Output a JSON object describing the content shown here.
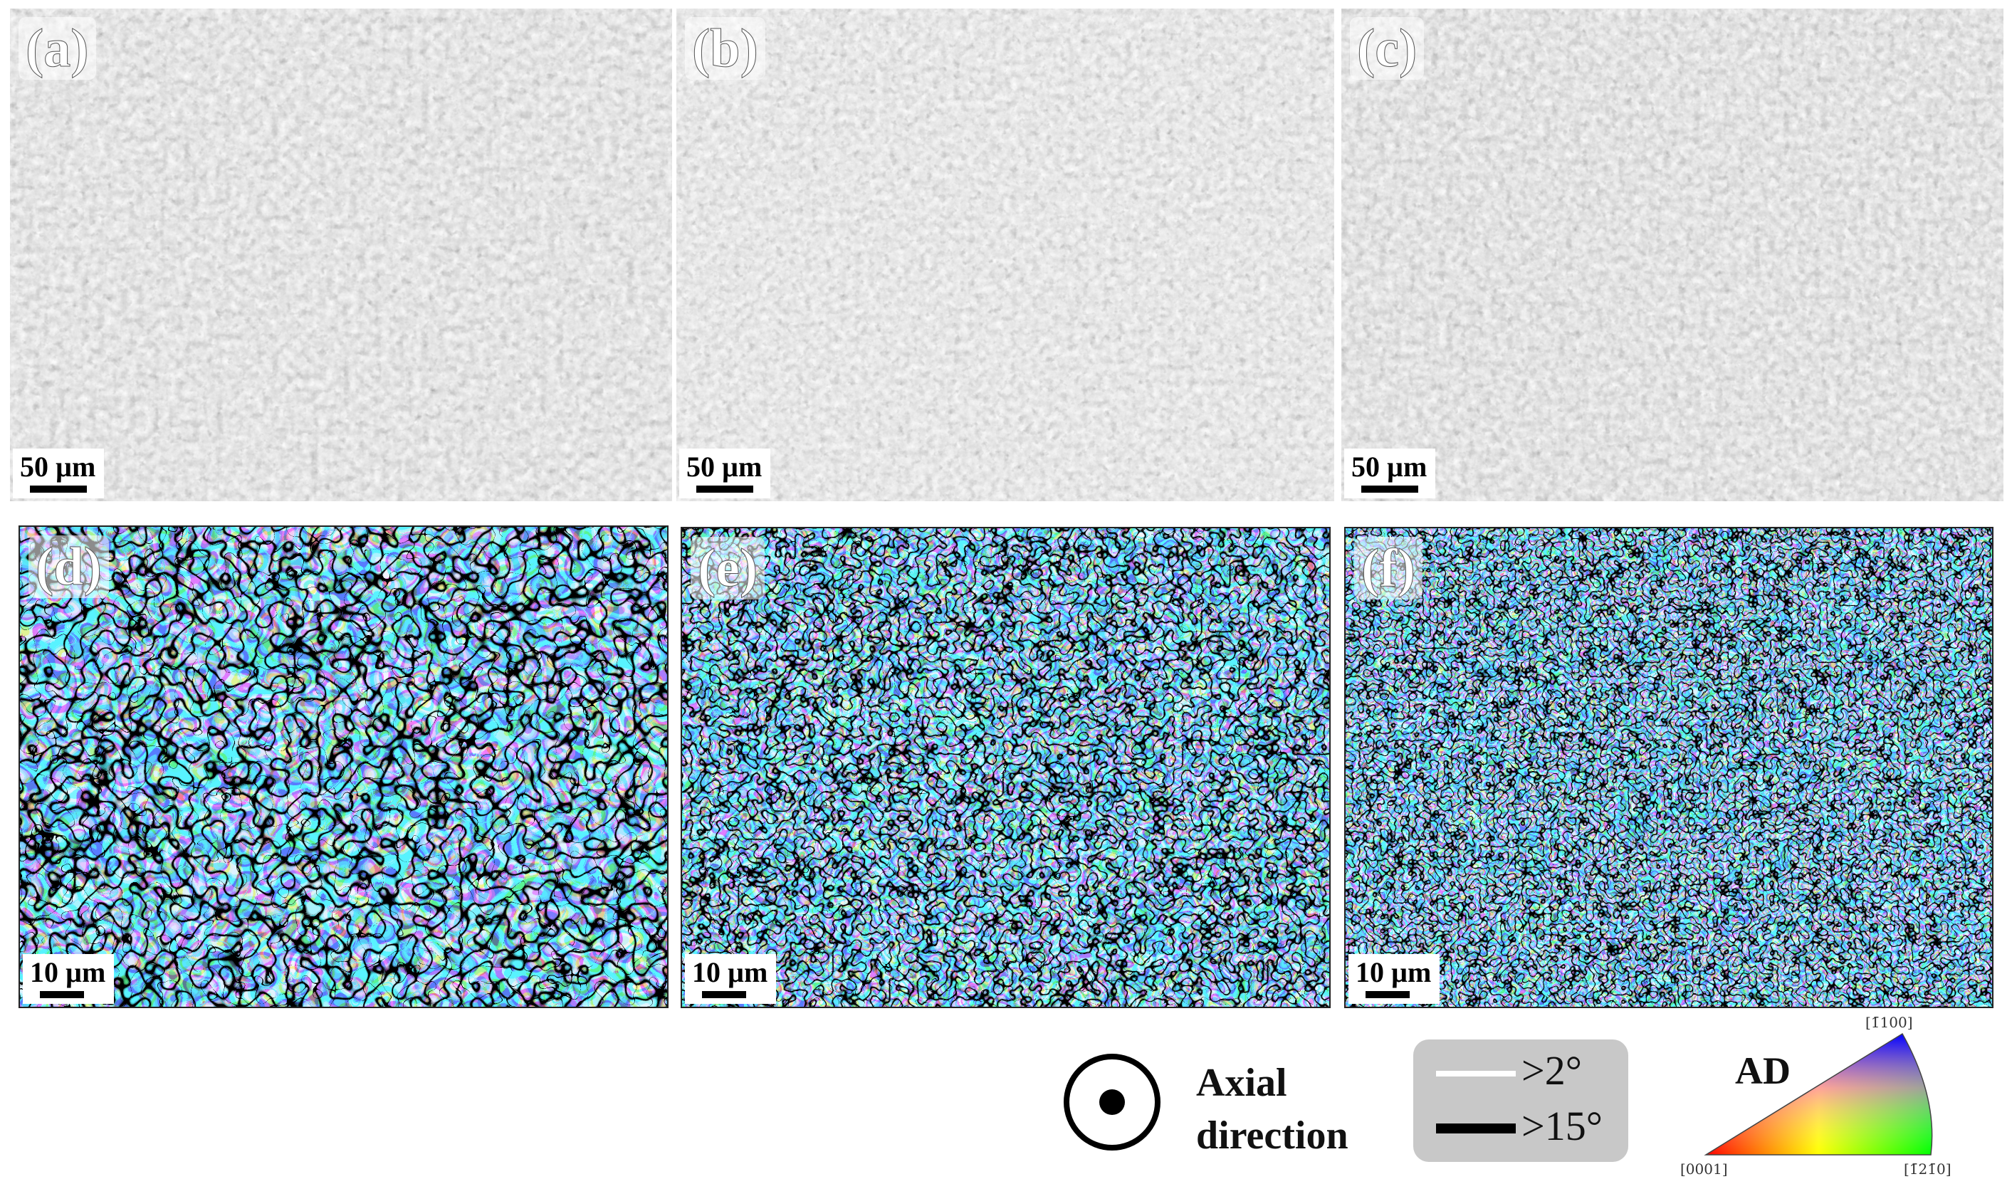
{
  "panels": [
    {
      "id": "a",
      "label": "(a)",
      "type": "optical",
      "scale": "50 µm"
    },
    {
      "id": "b",
      "label": "(b)",
      "type": "optical",
      "scale": "50 µm"
    },
    {
      "id": "c",
      "label": "(c)",
      "type": "optical",
      "scale": "50 µm"
    },
    {
      "id": "d",
      "label": "(d)",
      "type": "ebsd",
      "scale": "10 µm"
    },
    {
      "id": "e",
      "label": "(e)",
      "type": "ebsd",
      "scale": "10 µm"
    },
    {
      "id": "f",
      "label": "(f)",
      "type": "ebsd",
      "scale": "10 µm"
    }
  ],
  "legend": {
    "axial": {
      "line1": "Axial",
      "line2": "direction"
    },
    "boundaries": [
      {
        "label": ">2°",
        "color": "#ffffff"
      },
      {
        "label": ">15°",
        "color": "#000000"
      }
    ],
    "ipf": {
      "title": "AD",
      "corner_top": "[1̄100]",
      "corner_left": "[0001]",
      "corner_right": "[1̄21̄0]",
      "colors": {
        "left": "#ff0000",
        "right": "#00ff00",
        "top": "#0000ff"
      }
    }
  }
}
